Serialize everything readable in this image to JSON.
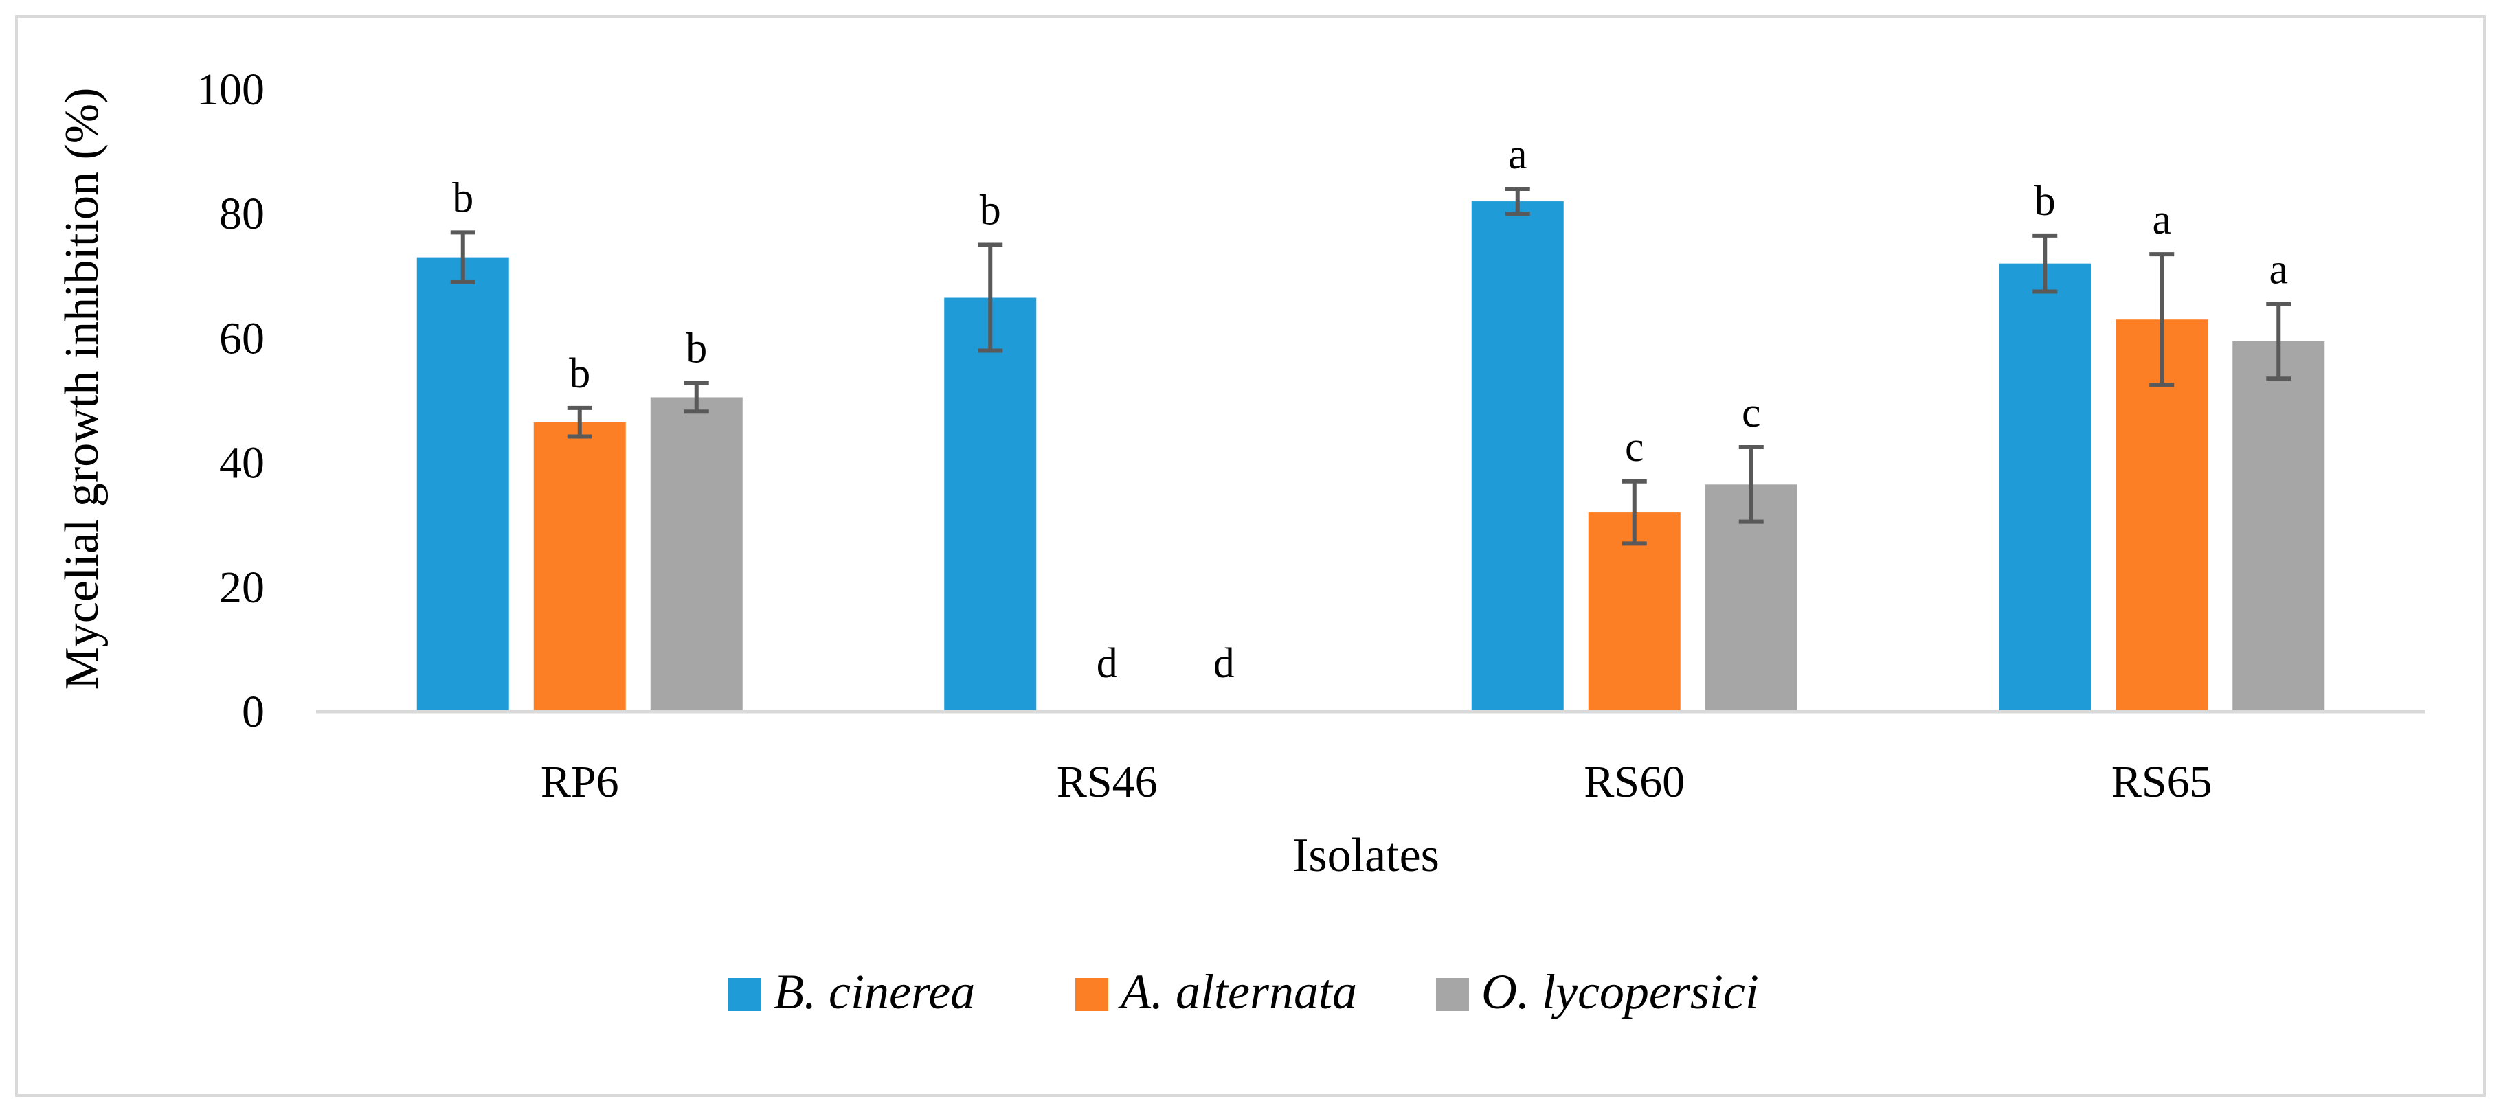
{
  "chart_data": {
    "type": "bar",
    "title": "",
    "xlabel": "Isolates",
    "ylabel": "Mycelial growth inhibition (%)",
    "ylim": [
      0,
      100
    ],
    "yticks": [
      0,
      20,
      40,
      60,
      80,
      100
    ],
    "categories": [
      "RP6",
      "RS46",
      "RS60",
      "RS65"
    ],
    "series": [
      {
        "name": "B. cinerea",
        "color": "#1F9BD7",
        "values": [
          73,
          66.5,
          82,
          72
        ],
        "errors": [
          4,
          8.5,
          2,
          4.5
        ],
        "labels": [
          "b",
          "b",
          "a",
          "b"
        ]
      },
      {
        "name": "A. alternata",
        "color": "#FD7F25",
        "values": [
          46.5,
          0,
          32,
          63
        ],
        "errors": [
          2.3,
          0,
          5,
          10.5
        ],
        "labels": [
          "b",
          "d",
          "c",
          "a"
        ]
      },
      {
        "name": "O. lycopersici",
        "color": "#A6A6A6",
        "values": [
          50.5,
          0,
          36.5,
          59.5
        ],
        "errors": [
          2.3,
          0,
          6,
          6
        ],
        "labels": [
          "b",
          "d",
          "c",
          "a"
        ]
      }
    ],
    "legend_position": "bottom",
    "grid": false,
    "error_bar_color": "#595959",
    "axis_color": "#D9D9D9",
    "frame_color": "#D9D9D9"
  }
}
